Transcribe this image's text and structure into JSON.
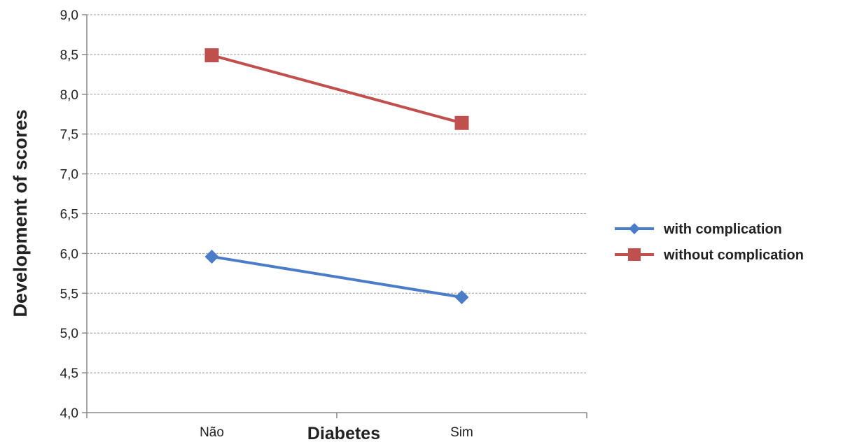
{
  "chart_data": {
    "type": "line",
    "xlabel": "Diabetes",
    "ylabel": "Development of scores",
    "categories": [
      "Não",
      "Sim"
    ],
    "ylim": [
      4.0,
      9.0
    ],
    "yticks": [
      "4,0",
      "4,5",
      "5,0",
      "5,5",
      "6,0",
      "6,5",
      "7,0",
      "7,5",
      "8,0",
      "8,5",
      "9,0"
    ],
    "grid": true,
    "legend_position": "right",
    "series": [
      {
        "name": "with complication",
        "values": [
          5.96,
          5.45
        ],
        "color": "#4a7cc7",
        "marker": "diamond"
      },
      {
        "name": "without complication",
        "values": [
          8.49,
          7.64
        ],
        "color": "#c0504d",
        "marker": "square"
      }
    ]
  }
}
